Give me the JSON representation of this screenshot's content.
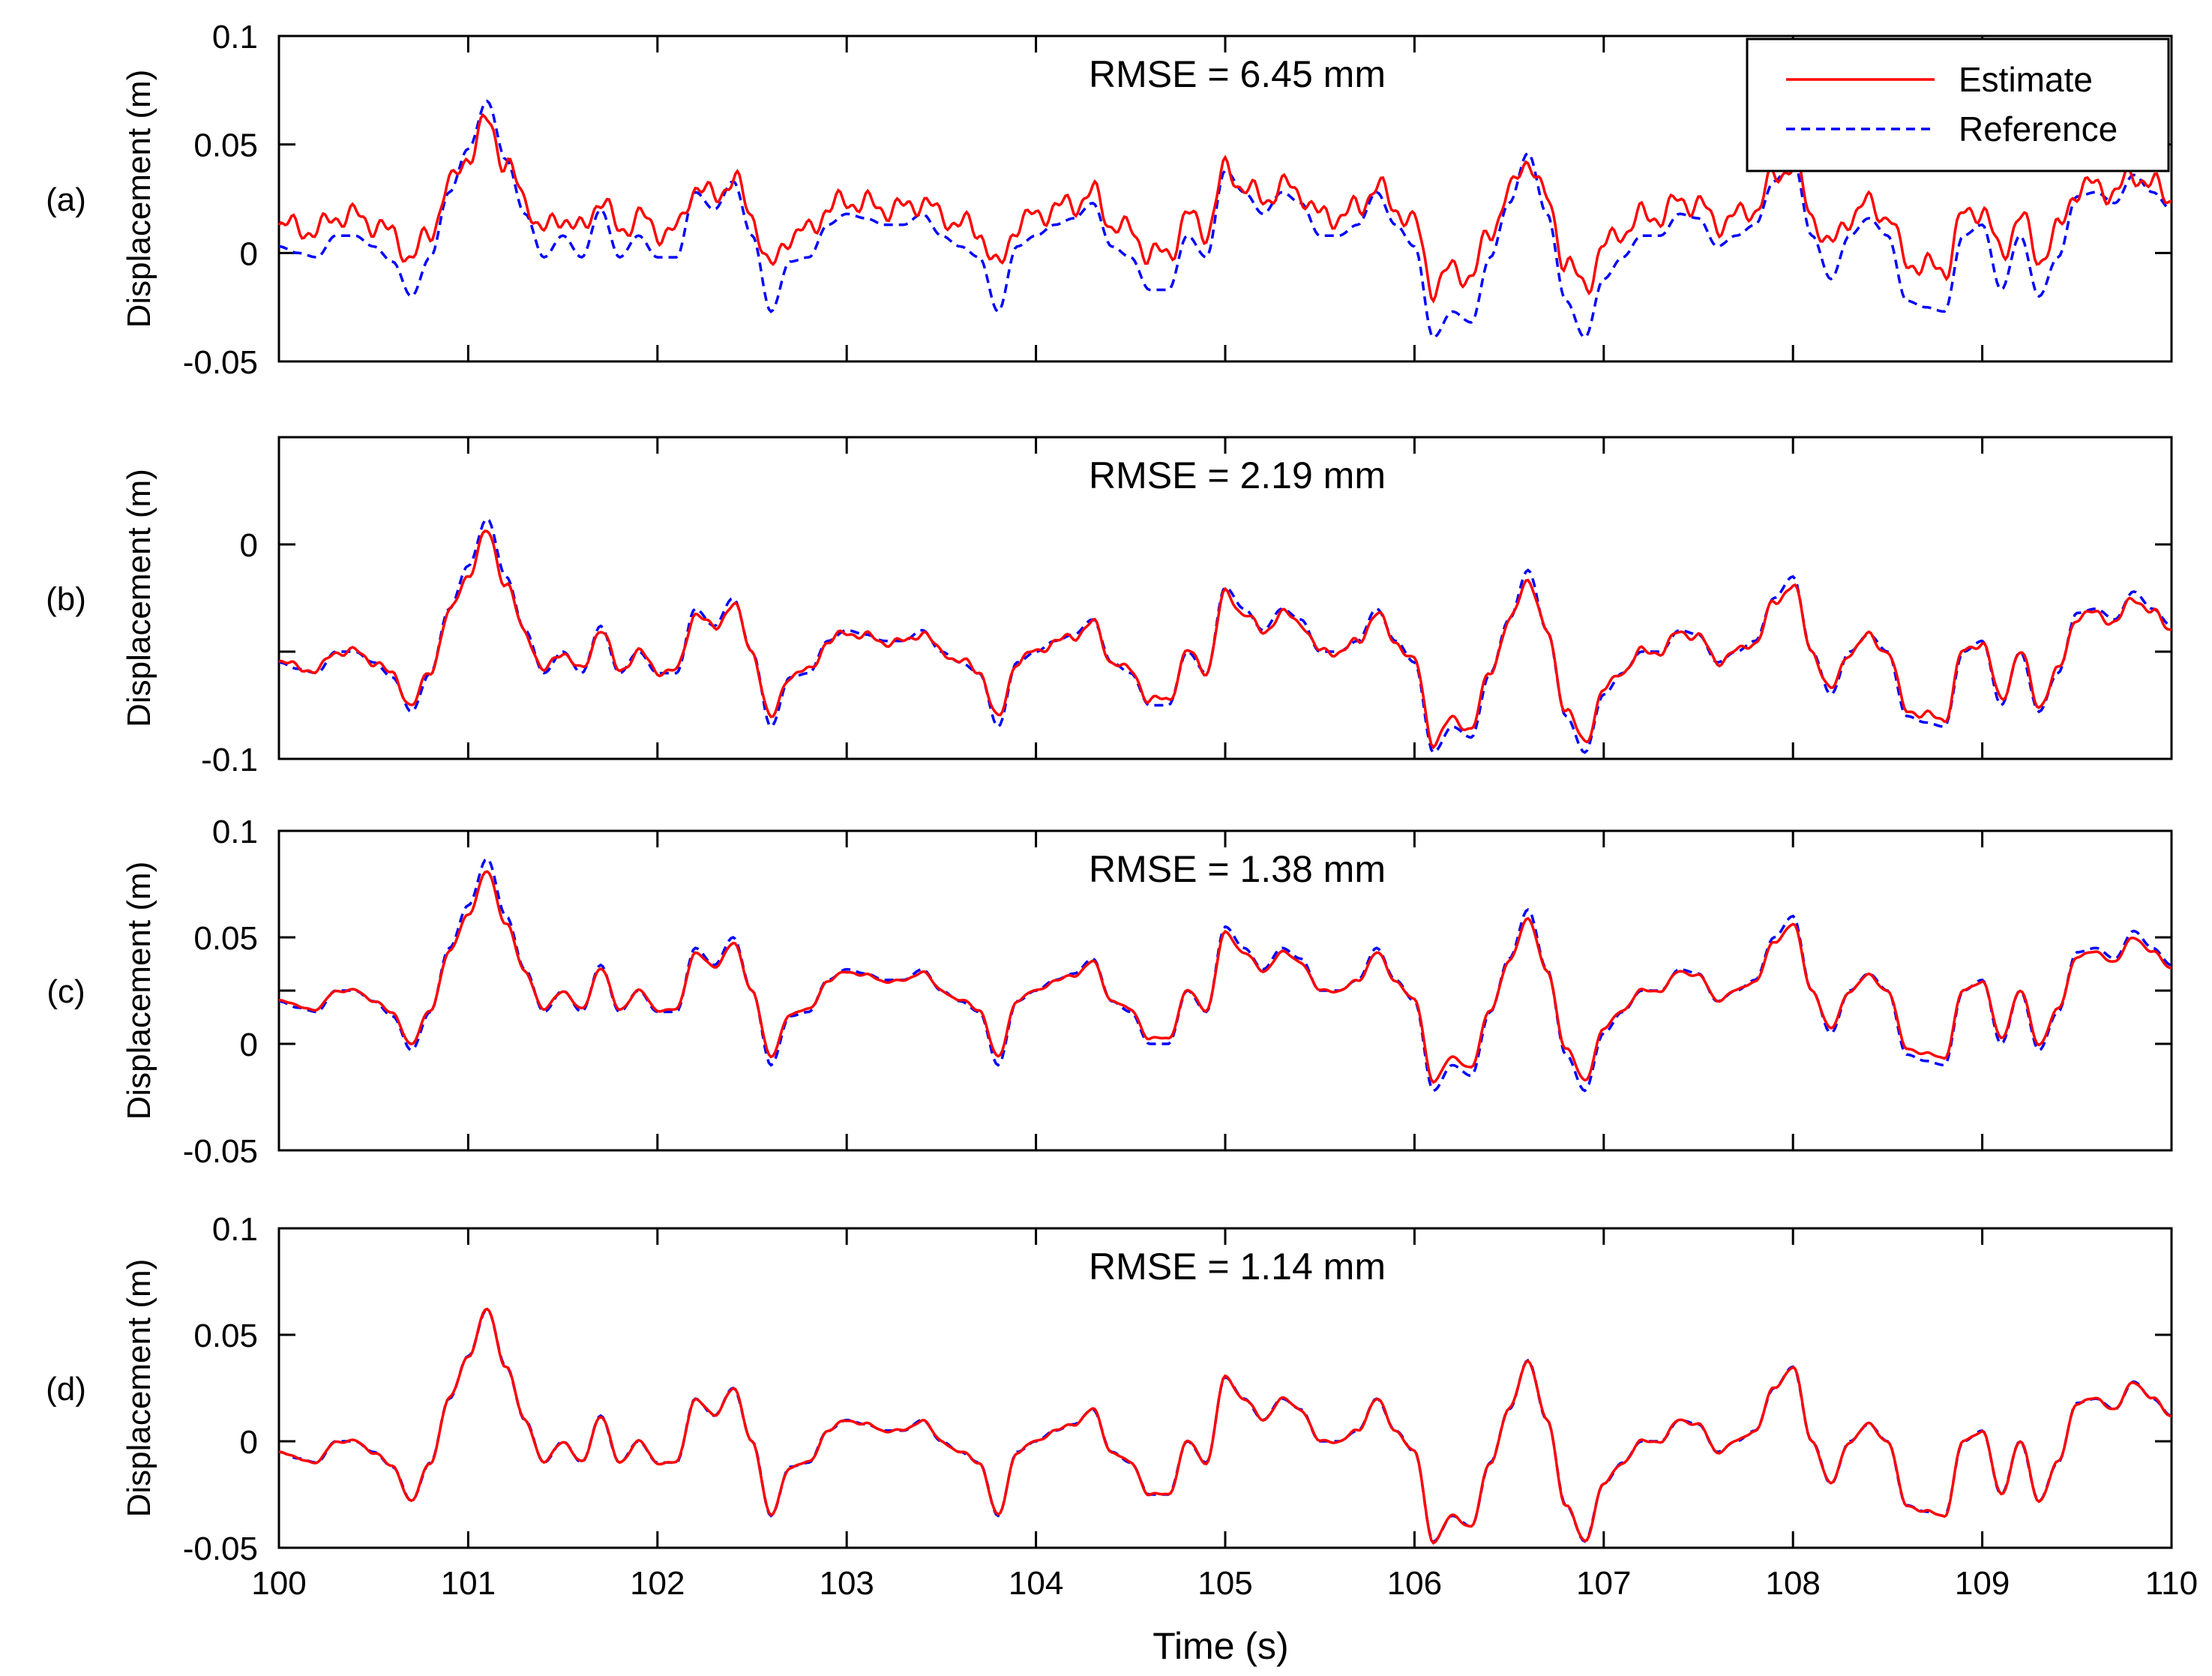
{
  "chart_data": {
    "type": "line",
    "xlabel": "Time (s)",
    "xlim": [
      100,
      110
    ],
    "xticks": [
      100,
      101,
      102,
      103,
      104,
      105,
      106,
      107,
      108,
      109,
      110
    ],
    "ylabel": "Displacement (m)",
    "legend": {
      "position": "top-right",
      "entries": [
        "Estimate",
        "Reference"
      ]
    },
    "colors": {
      "estimate": "#ff0000",
      "reference": "#0000ff"
    },
    "panels": [
      {
        "id": "a",
        "label": "(a)",
        "rmse": "RMSE = 6.45 mm",
        "offset": 0.008,
        "ylim": [
          -0.05,
          0.1
        ],
        "yticks": [
          -0.05,
          0,
          0.05,
          0.1
        ],
        "yticklabels": [
          "-0.05",
          "0",
          "0.05",
          "0.1"
        ],
        "ref_scale": 1.0,
        "est_scale": 0.7
      },
      {
        "id": "b",
        "label": "(b)",
        "rmse": "RMSE = 2.19 mm",
        "offset": -0.05,
        "ylim": [
          -0.1,
          0.05
        ],
        "yticks": [
          -0.1,
          -0.05,
          0,
          0.05
        ],
        "yticklabels": [
          "-0.1",
          "",
          "0",
          ""
        ],
        "ref_scale": 1.0,
        "est_scale": 0.9
      },
      {
        "id": "c",
        "label": "(c)",
        "rmse": "RMSE = 1.38 mm",
        "offset": 0.025,
        "ylim": [
          -0.05,
          0.1
        ],
        "yticks": [
          -0.05,
          0,
          0.025,
          0.05,
          0.1
        ],
        "yticklabels": [
          "-0.05",
          "0",
          "",
          "0.05",
          "0.1"
        ],
        "ref_scale": 1.0,
        "est_scale": 0.9
      },
      {
        "id": "d",
        "label": "(d)",
        "rmse": "RMSE = 1.14 mm",
        "offset": 0.0,
        "ylim": [
          -0.05,
          0.1
        ],
        "yticks": [
          -0.05,
          0,
          0.05,
          0.1
        ],
        "yticklabels": [
          "-0.05",
          "0",
          "0.05",
          "0.1"
        ],
        "ref_scale": 1.0,
        "est_scale": 1.0
      }
    ],
    "reference_signal": {
      "t": [
        100.0,
        100.1,
        100.2,
        100.3,
        100.4,
        100.5,
        100.6,
        100.7,
        100.8,
        100.9,
        101.0,
        101.1,
        101.2,
        101.3,
        101.4,
        101.5,
        101.6,
        101.7,
        101.8,
        101.9,
        102.0,
        102.1,
        102.2,
        102.3,
        102.4,
        102.5,
        102.6,
        102.7,
        102.8,
        102.9,
        103.0,
        103.1,
        103.2,
        103.3,
        103.4,
        103.5,
        103.6,
        103.7,
        103.8,
        103.9,
        104.0,
        104.1,
        104.2,
        104.3,
        104.4,
        104.5,
        104.6,
        104.7,
        104.8,
        104.9,
        105.0,
        105.1,
        105.2,
        105.3,
        105.4,
        105.5,
        105.6,
        105.7,
        105.8,
        105.9,
        106.0,
        106.1,
        106.2,
        106.3,
        106.4,
        106.5,
        106.6,
        106.7,
        106.8,
        106.9,
        107.0,
        107.1,
        107.2,
        107.3,
        107.4,
        107.5,
        107.6,
        107.7,
        107.8,
        107.9,
        108.0,
        108.1,
        108.2,
        108.3,
        108.4,
        108.5,
        108.6,
        108.7,
        108.8,
        108.9,
        109.0,
        109.1,
        109.2,
        109.3,
        109.4,
        109.5,
        109.6,
        109.7,
        109.8,
        109.9,
        110.0
      ],
      "y": [
        -0.005,
        -0.008,
        -0.01,
        0.0,
        0.0,
        -0.005,
        -0.012,
        -0.028,
        -0.01,
        0.02,
        0.04,
        0.062,
        0.035,
        0.01,
        -0.01,
        0.0,
        -0.01,
        0.012,
        -0.01,
        0.0,
        -0.01,
        -0.01,
        0.02,
        0.012,
        0.025,
        0.0,
        -0.035,
        -0.012,
        -0.01,
        0.005,
        0.01,
        0.008,
        0.005,
        0.005,
        0.01,
        0.0,
        -0.005,
        -0.01,
        -0.035,
        -0.005,
        0.0,
        0.005,
        0.008,
        0.015,
        -0.005,
        -0.01,
        -0.025,
        -0.025,
        0.0,
        -0.01,
        0.03,
        0.02,
        0.01,
        0.02,
        0.015,
        0.0,
        0.0,
        0.005,
        0.02,
        0.005,
        -0.005,
        -0.047,
        -0.035,
        -0.04,
        -0.01,
        0.015,
        0.038,
        0.01,
        -0.03,
        -0.047,
        -0.02,
        -0.01,
        0.0,
        0.0,
        0.01,
        0.008,
        -0.005,
        0.0,
        0.005,
        0.025,
        0.035,
        0.0,
        -0.02,
        0.0,
        0.008,
        0.0,
        -0.03,
        -0.033,
        -0.035,
        0.0,
        0.005,
        -0.025,
        0.0,
        -0.028,
        -0.01,
        0.018,
        0.02,
        0.015,
        0.028,
        0.02,
        0.012
      ]
    }
  }
}
